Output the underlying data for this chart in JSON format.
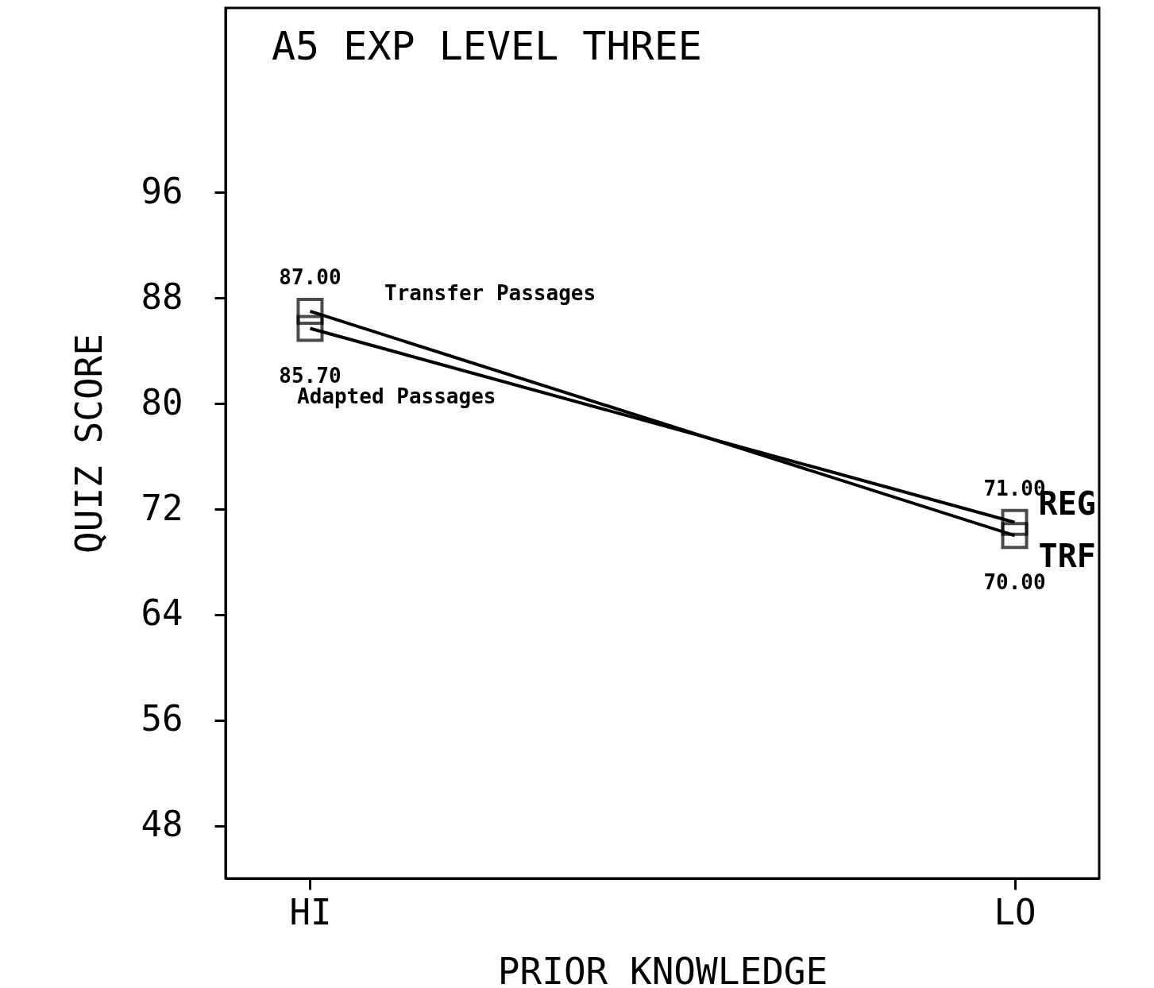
{
  "chart_data": {
    "type": "line",
    "title": "A5  EXP  LEVEL THREE",
    "xlabel": "PRIOR KNOWLEDGE",
    "ylabel": "QUIZ SCORE",
    "categories": [
      "HI",
      "LO"
    ],
    "series": [
      {
        "name": "REG",
        "color": "#000000",
        "values": [
          85.7,
          71
        ],
        "value_labels": [
          "85.70",
          "71.00"
        ]
      },
      {
        "name": "TRF",
        "color": "#000000",
        "values": [
          87,
          70
        ],
        "value_labels": [
          "87.00",
          "70.00"
        ]
      }
    ],
    "annotations": [
      "Transfer Passages",
      "Adapted Passages"
    ],
    "ylim": [
      44,
      110
    ],
    "yticks": [
      48,
      56,
      64,
      72,
      80,
      88,
      96
    ],
    "grid": false,
    "legend": false,
    "marker": "square",
    "line_style": "solid"
  }
}
